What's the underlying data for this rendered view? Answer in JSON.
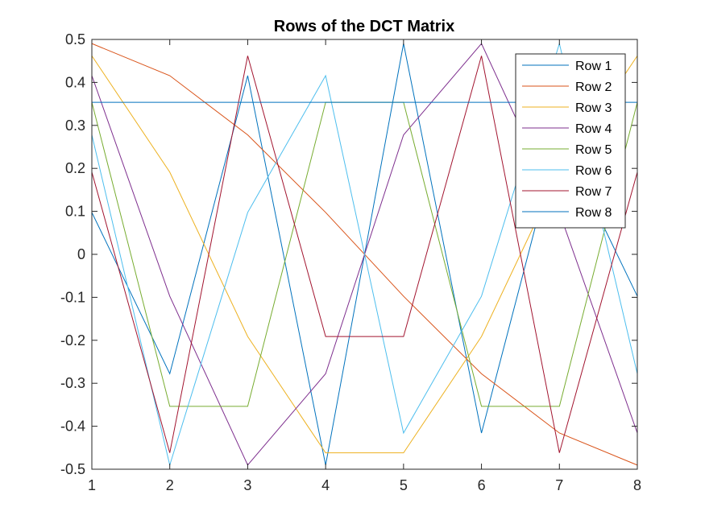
{
  "chart_data": {
    "type": "line",
    "title": "Rows of the DCT Matrix",
    "xlabel": "",
    "ylabel": "",
    "xlim": [
      1,
      8
    ],
    "ylim": [
      -0.5,
      0.5
    ],
    "xticks": [
      1,
      2,
      3,
      4,
      5,
      6,
      7,
      8
    ],
    "yticks": [
      -0.5,
      -0.4,
      -0.3,
      -0.2,
      -0.1,
      0,
      0.1,
      0.2,
      0.3,
      0.4,
      0.5
    ],
    "xtick_labels": [
      "1",
      "2",
      "3",
      "4",
      "5",
      "6",
      "7",
      "8"
    ],
    "ytick_labels": [
      "-0.5",
      "-0.4",
      "-0.3",
      "-0.2",
      "-0.1",
      "0",
      "0.1",
      "0.2",
      "0.3",
      "0.4",
      "0.5"
    ],
    "grid": false,
    "legend_position": "top-right",
    "x": [
      1,
      2,
      3,
      4,
      5,
      6,
      7,
      8
    ],
    "series": [
      {
        "name": "Row 1",
        "color": "#0072BD",
        "values": [
          0.0975,
          -0.2778,
          0.4157,
          -0.4904,
          0.4904,
          -0.4157,
          0.2778,
          -0.0975
        ]
      },
      {
        "name": "Row 2",
        "color": "#D95319",
        "values": [
          0.4904,
          0.4157,
          0.2778,
          0.0975,
          -0.0975,
          -0.2778,
          -0.4157,
          -0.4904
        ]
      },
      {
        "name": "Row 3",
        "color": "#EDB120",
        "values": [
          0.4619,
          0.1913,
          -0.1913,
          -0.4619,
          -0.4619,
          -0.1913,
          0.1913,
          0.4619
        ]
      },
      {
        "name": "Row 4",
        "color": "#7E2F8E",
        "values": [
          0.4157,
          -0.0975,
          -0.4904,
          -0.2778,
          0.2778,
          0.4904,
          0.0975,
          -0.4157
        ]
      },
      {
        "name": "Row 5",
        "color": "#77AC30",
        "values": [
          0.3536,
          -0.3536,
          -0.3536,
          0.3536,
          0.3536,
          -0.3536,
          -0.3536,
          0.3536
        ]
      },
      {
        "name": "Row 6",
        "color": "#4DBEEE",
        "values": [
          0.2778,
          -0.4904,
          0.0975,
          0.4157,
          -0.4157,
          -0.0975,
          0.4904,
          -0.2778
        ]
      },
      {
        "name": "Row 7",
        "color": "#A2142F",
        "values": [
          0.1913,
          -0.4619,
          0.4619,
          -0.1913,
          -0.1913,
          0.4619,
          -0.4619,
          0.1913
        ]
      },
      {
        "name": "Row 8",
        "color": "#0072BD",
        "values": [
          0.3536,
          0.3536,
          0.3536,
          0.3536,
          0.3536,
          0.3536,
          0.3536,
          0.3536
        ]
      }
    ]
  }
}
